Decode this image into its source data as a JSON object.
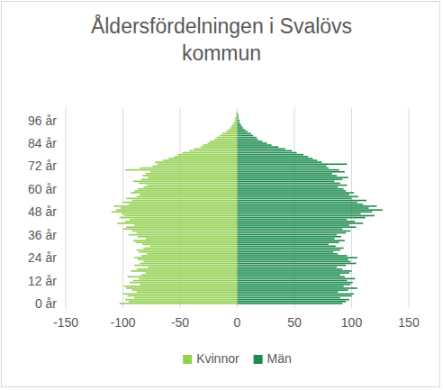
{
  "chart_data": {
    "type": "bar",
    "orientation": "horizontal",
    "title": "Åldersfördelningen i Svalövs kommun",
    "categories": [
      "0 år",
      null,
      null,
      null,
      null,
      null,
      null,
      null,
      null,
      null,
      null,
      null,
      "12 år",
      null,
      null,
      null,
      null,
      null,
      null,
      null,
      null,
      null,
      null,
      null,
      "24 år",
      null,
      null,
      null,
      null,
      null,
      null,
      null,
      null,
      null,
      null,
      null,
      "36 år",
      null,
      null,
      null,
      null,
      null,
      null,
      null,
      null,
      null,
      null,
      null,
      "48 år",
      null,
      null,
      null,
      null,
      null,
      null,
      null,
      null,
      null,
      null,
      null,
      "60 år",
      null,
      null,
      null,
      null,
      null,
      null,
      null,
      null,
      null,
      null,
      null,
      "72 år",
      null,
      null,
      null,
      null,
      null,
      null,
      null,
      null,
      null,
      null,
      null,
      "84 år",
      null,
      null,
      null,
      null,
      null,
      null,
      null,
      null,
      null,
      null,
      null,
      "96 år",
      null,
      null,
      null,
      null
    ],
    "series": [
      {
        "name": "Kvinnor",
        "color": "#92d050",
        "values": [
          -103,
          -95,
          -98,
          -90,
          -96,
          -100,
          -88,
          -92,
          -97,
          -99,
          -85,
          -94,
          -91,
          -86,
          -96,
          -84,
          -80,
          -93,
          -88,
          -78,
          -90,
          -85,
          -82,
          -87,
          -90,
          -84,
          -79,
          -86,
          -88,
          -82,
          -76,
          -83,
          -89,
          -91,
          -80,
          -87,
          -95,
          -88,
          -92,
          -100,
          -97,
          -90,
          -105,
          -98,
          -94,
          -103,
          -99,
          -101,
          -110,
          -106,
          -102,
          -108,
          -95,
          -100,
          -92,
          -97,
          -88,
          -85,
          -93,
          -90,
          -87,
          -82,
          -79,
          -86,
          -91,
          -84,
          -78,
          -83,
          -80,
          -76,
          -98,
          -85,
          -74,
          -70,
          -72,
          -65,
          -60,
          -55,
          -52,
          -48,
          -42,
          -38,
          -32,
          -30,
          -26,
          -24,
          -20,
          -18,
          -15,
          -13,
          -10,
          -8,
          -6,
          -5,
          -4,
          -3,
          -2,
          -2,
          -1,
          -1,
          -1
        ]
      },
      {
        "name": "Män",
        "color": "#1e8c4e",
        "values": [
          92,
          95,
          98,
          90,
          100,
          102,
          88,
          97,
          105,
          93,
          99,
          101,
          96,
          103,
          94,
          90,
          98,
          100,
          92,
          87,
          95,
          104,
          99,
          97,
          105,
          96,
          88,
          84,
          90,
          93,
          86,
          80,
          89,
          94,
          85,
          91,
          87,
          95,
          99,
          92,
          104,
          98,
          110,
          103,
          96,
          112,
          120,
          108,
          118,
          127,
          115,
          122,
          110,
          105,
          113,
          100,
          106,
          98,
          102,
          95,
          93,
          88,
          96,
          90,
          85,
          92,
          97,
          87,
          83,
          94,
          89,
          80,
          78,
          96,
          74,
          70,
          66,
          62,
          58,
          52,
          48,
          42,
          36,
          30,
          26,
          22,
          18,
          17,
          14,
          12,
          9,
          7,
          5,
          4,
          3,
          2,
          2,
          1,
          1,
          1,
          0
        ]
      }
    ],
    "xlim": [
      -150,
      150
    ],
    "xticks": [
      -150,
      -100,
      -50,
      0,
      50,
      100,
      150
    ],
    "grid": true,
    "legend": "bottom"
  }
}
